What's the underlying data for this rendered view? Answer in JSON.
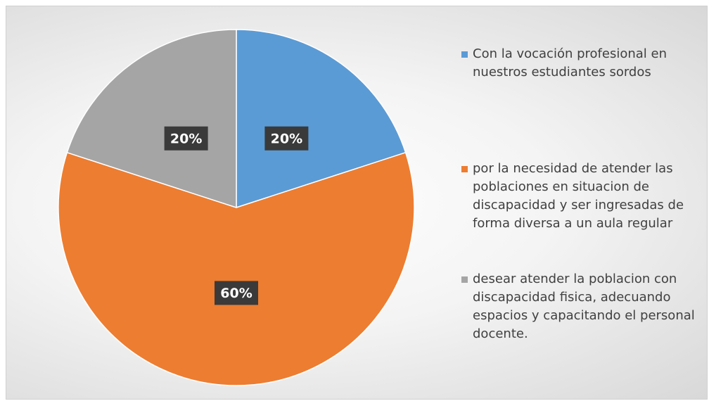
{
  "chart_data": {
    "type": "pie",
    "categories": [
      "Con la vocación profesional en nuestros estudiantes sordos",
      "por la necesidad de atender las poblaciones en situacion de discapacidad y ser ingresadas de forma diversa a un aula regular",
      "desear atender la poblacion con discapacidad fisica, adecuando espacios y capacitando el personal docente."
    ],
    "values": [
      20,
      60,
      20
    ],
    "value_labels": [
      "20%",
      "60%",
      "20%"
    ],
    "colors": [
      "#5b9bd5",
      "#ed7d31",
      "#a5a5a5"
    ]
  }
}
